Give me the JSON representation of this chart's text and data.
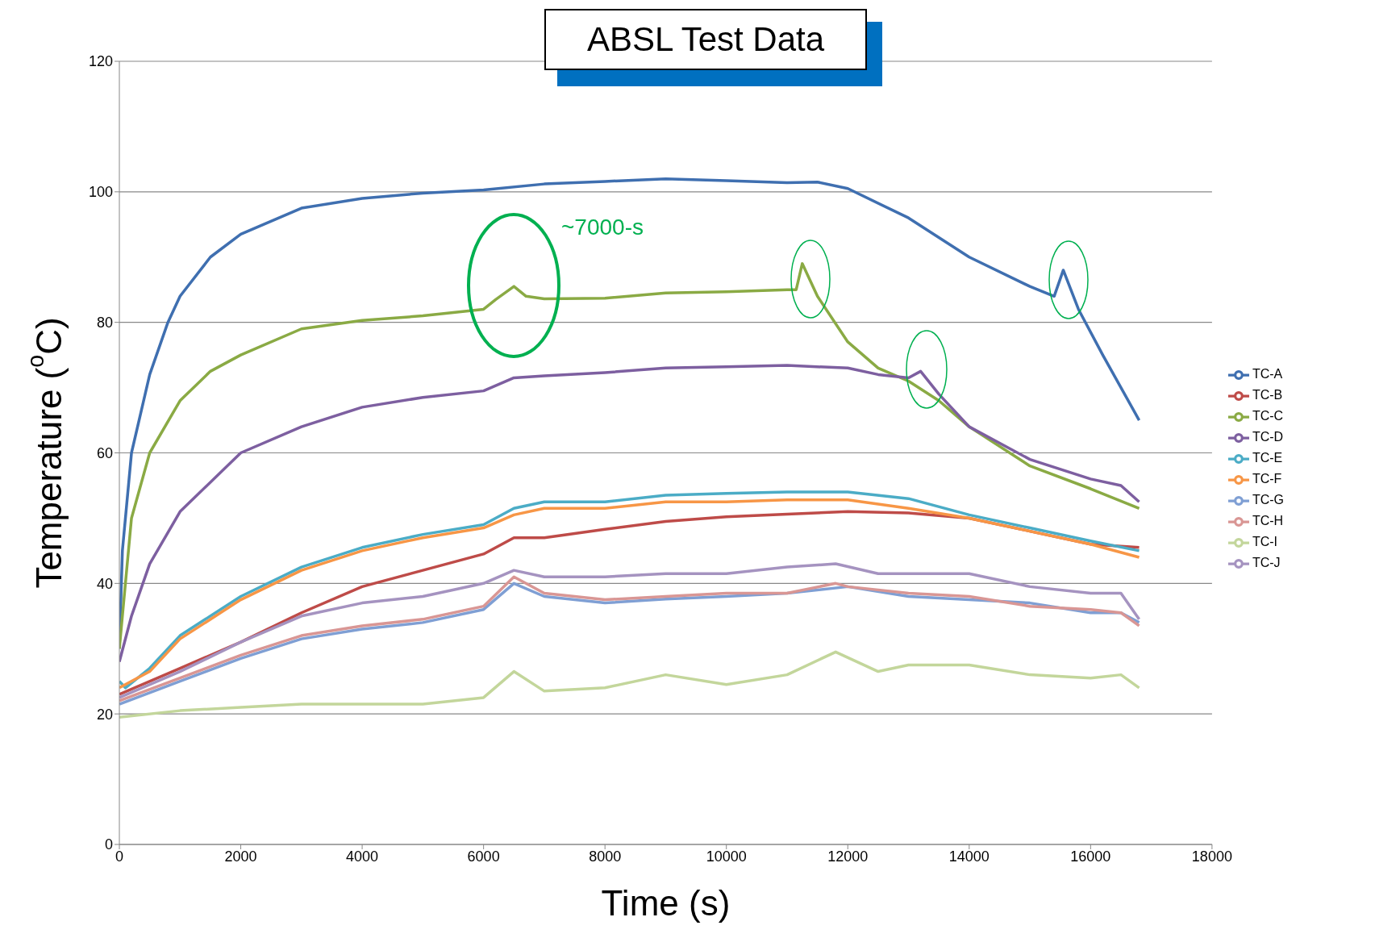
{
  "chart_data": {
    "type": "line",
    "title": "ABSL Test Data",
    "xlabel": "Time (s)",
    "ylabel": "Temperature ($^{o}$C)",
    "annotations": [
      "~7000-s"
    ],
    "xlim": [
      0,
      18000
    ],
    "xticks": [
      0,
      2000,
      4000,
      6000,
      8000,
      10000,
      12000,
      14000,
      16000,
      18000
    ],
    "ylim": [
      0,
      120
    ],
    "yticks": [
      0,
      20,
      40,
      60,
      80,
      100,
      120
    ],
    "grid": "y",
    "legend": "right",
    "series": [
      {
        "name": "TC-A",
        "color": "#3f6fb0",
        "x": [
          0,
          50,
          200,
          500,
          800,
          1000,
          1500,
          2000,
          3000,
          4000,
          5000,
          6000,
          7000,
          8000,
          9000,
          10000,
          11000,
          11500,
          12000,
          13000,
          14000,
          15000,
          15400,
          15550,
          15800,
          16200,
          16800
        ],
        "values": [
          30,
          45,
          60,
          72,
          80,
          84,
          90,
          93.5,
          97.5,
          99,
          99.8,
          100.3,
          101.2,
          101.6,
          102,
          101.7,
          101.4,
          101.5,
          100.5,
          96,
          90,
          85.5,
          84,
          88,
          82,
          75,
          65
        ]
      },
      {
        "name": "TC-B",
        "color": "#be4b48",
        "x": [
          0,
          1000,
          2000,
          3000,
          4000,
          5000,
          6000,
          6500,
          7000,
          8000,
          9000,
          10000,
          11000,
          12000,
          13000,
          14000,
          15000,
          16000,
          16800
        ],
        "values": [
          23,
          27,
          31,
          35.5,
          39.5,
          42,
          44.5,
          47,
          47,
          48.3,
          49.5,
          50.2,
          50.6,
          51,
          50.8,
          50,
          48,
          46,
          45.5
        ]
      },
      {
        "name": "TC-C",
        "color": "#8aaa44",
        "x": [
          0,
          200,
          500,
          1000,
          1500,
          2000,
          3000,
          4000,
          5000,
          6000,
          6200,
          6500,
          6700,
          7000,
          8000,
          9000,
          10000,
          11000,
          11150,
          11250,
          11500,
          12000,
          12500,
          13000,
          13500,
          14000,
          15000,
          16000,
          16800
        ],
        "values": [
          30,
          50,
          60,
          68,
          72.5,
          75,
          79,
          80.3,
          81,
          82,
          83.5,
          85.5,
          84,
          83.6,
          83.7,
          84.5,
          84.7,
          85,
          85,
          89,
          84,
          77,
          73,
          71,
          68,
          64,
          58,
          54.5,
          51.5
        ]
      },
      {
        "name": "TC-D",
        "color": "#7d5fa0",
        "x": [
          0,
          200,
          500,
          1000,
          2000,
          3000,
          4000,
          5000,
          6000,
          6500,
          7000,
          8000,
          9000,
          10000,
          11000,
          12000,
          12500,
          13000,
          13200,
          13500,
          14000,
          15000,
          16000,
          16500,
          16800
        ],
        "values": [
          28,
          35,
          43,
          51,
          60,
          64,
          67,
          68.5,
          69.5,
          71.5,
          71.8,
          72.3,
          73,
          73.2,
          73.4,
          73,
          72,
          71.5,
          72.5,
          69,
          64,
          59,
          56,
          55,
          52.5
        ]
      },
      {
        "name": "TC-E",
        "color": "#4bacc6",
        "x": [
          0,
          100,
          500,
          1000,
          2000,
          3000,
          4000,
          5000,
          6000,
          6500,
          7000,
          8000,
          9000,
          10000,
          11000,
          12000,
          13000,
          14000,
          15000,
          16000,
          16800
        ],
        "values": [
          25,
          24,
          27,
          32,
          38,
          42.5,
          45.5,
          47.5,
          49,
          51.5,
          52.5,
          52.5,
          53.5,
          53.8,
          54,
          54,
          53,
          50.5,
          48.5,
          46.5,
          45
        ]
      },
      {
        "name": "TC-F",
        "color": "#f79646",
        "x": [
          0,
          500,
          1000,
          2000,
          3000,
          4000,
          5000,
          6000,
          6500,
          7000,
          8000,
          9000,
          10000,
          11000,
          12000,
          13000,
          14000,
          15000,
          16000,
          16800
        ],
        "values": [
          24,
          26.5,
          31.5,
          37.5,
          42,
          45,
          47,
          48.5,
          50.5,
          51.5,
          51.5,
          52.5,
          52.5,
          52.8,
          52.8,
          51.5,
          50,
          48,
          46,
          44
        ]
      },
      {
        "name": "TC-G",
        "color": "#7f9fd4",
        "x": [
          0,
          1000,
          2000,
          3000,
          4000,
          5000,
          6000,
          6500,
          7000,
          8000,
          9000,
          10000,
          11000,
          12000,
          13000,
          14000,
          15000,
          16000,
          16500,
          16800
        ],
        "values": [
          21.5,
          25,
          28.5,
          31.5,
          33,
          34,
          36,
          40,
          38,
          37,
          37.6,
          38,
          38.5,
          39.5,
          38,
          37.5,
          37,
          35.5,
          35.5,
          34
        ]
      },
      {
        "name": "TC-H",
        "color": "#d99694",
        "x": [
          0,
          1000,
          2000,
          3000,
          4000,
          5000,
          6000,
          6500,
          7000,
          8000,
          9000,
          10000,
          11000,
          11800,
          12000,
          13000,
          14000,
          15000,
          16000,
          16500,
          16800
        ],
        "values": [
          22,
          25.5,
          29,
          32,
          33.5,
          34.5,
          36.5,
          41,
          38.5,
          37.5,
          38,
          38.5,
          38.5,
          40,
          39.5,
          38.5,
          38,
          36.5,
          36,
          35.5,
          33.5
        ]
      },
      {
        "name": "TC-I",
        "color": "#c3d69b",
        "x": [
          0,
          1000,
          2000,
          3000,
          4000,
          5000,
          6000,
          6500,
          7000,
          8000,
          9000,
          10000,
          11000,
          11800,
          12500,
          13000,
          14000,
          15000,
          16000,
          16500,
          16800
        ],
        "values": [
          19.5,
          20.5,
          21,
          21.5,
          21.5,
          21.5,
          22.5,
          26.5,
          23.5,
          24,
          26,
          24.5,
          26,
          29.5,
          26.5,
          27.5,
          27.5,
          26,
          25.5,
          26,
          24
        ]
      },
      {
        "name": "TC-J",
        "color": "#a593c0",
        "x": [
          0,
          1000,
          2000,
          3000,
          4000,
          5000,
          6000,
          6500,
          7000,
          8000,
          9000,
          10000,
          11000,
          11800,
          12500,
          13000,
          14000,
          15000,
          16000,
          16500,
          16800
        ],
        "values": [
          22.5,
          26.5,
          31,
          35,
          37,
          38,
          40,
          42,
          41,
          41,
          41.5,
          41.5,
          42.5,
          43,
          41.5,
          41.5,
          41.5,
          39.5,
          38.5,
          38.5,
          34.5
        ]
      }
    ]
  }
}
